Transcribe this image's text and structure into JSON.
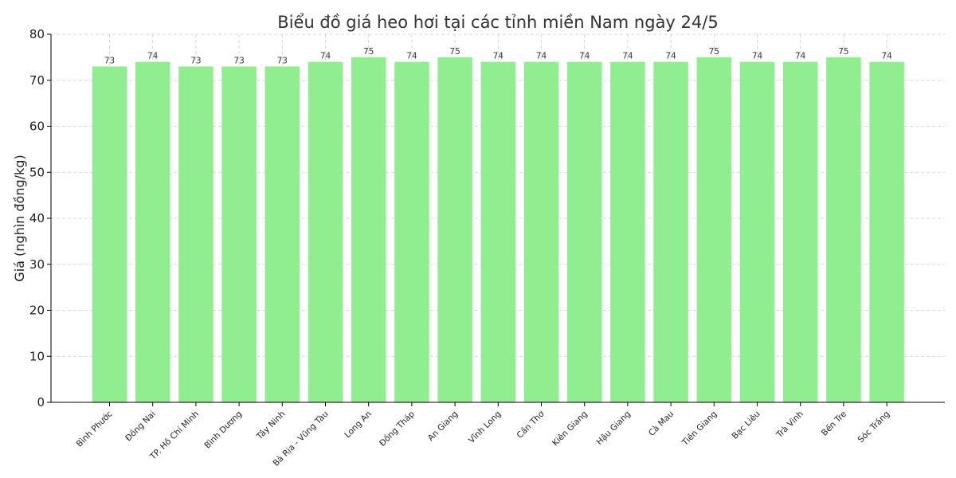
{
  "chart_data": {
    "type": "bar",
    "title": "Biểu đồ giá heo hơi tại các tỉnh miền Nam ngày 24/5",
    "xlabel": "",
    "ylabel": "Giá (nghìn đồng/kg)",
    "ylim": [
      0,
      80
    ],
    "yticks": [
      0,
      10,
      20,
      30,
      40,
      50,
      60,
      70,
      80
    ],
    "grid": true,
    "categories": [
      "Bình Phước",
      "Đồng Nai",
      "TP. Hồ Chí Minh",
      "Bình Dương",
      "Tây Ninh",
      "Bà Rịa - Vũng Tàu",
      "Long An",
      "Đồng Tháp",
      "An Giang",
      "Vĩnh Long",
      "Cần Thơ",
      "Kiên Giang",
      "Hậu Giang",
      "Cà Mau",
      "Tiền Giang",
      "Bạc Liêu",
      "Trà Vinh",
      "Bến Tre",
      "Sóc Trăng"
    ],
    "values": [
      73,
      74,
      73,
      73,
      73,
      74,
      75,
      74,
      75,
      74,
      74,
      74,
      74,
      74,
      75,
      74,
      74,
      75,
      74
    ],
    "colors": {
      "bar": "#90ee90"
    }
  }
}
